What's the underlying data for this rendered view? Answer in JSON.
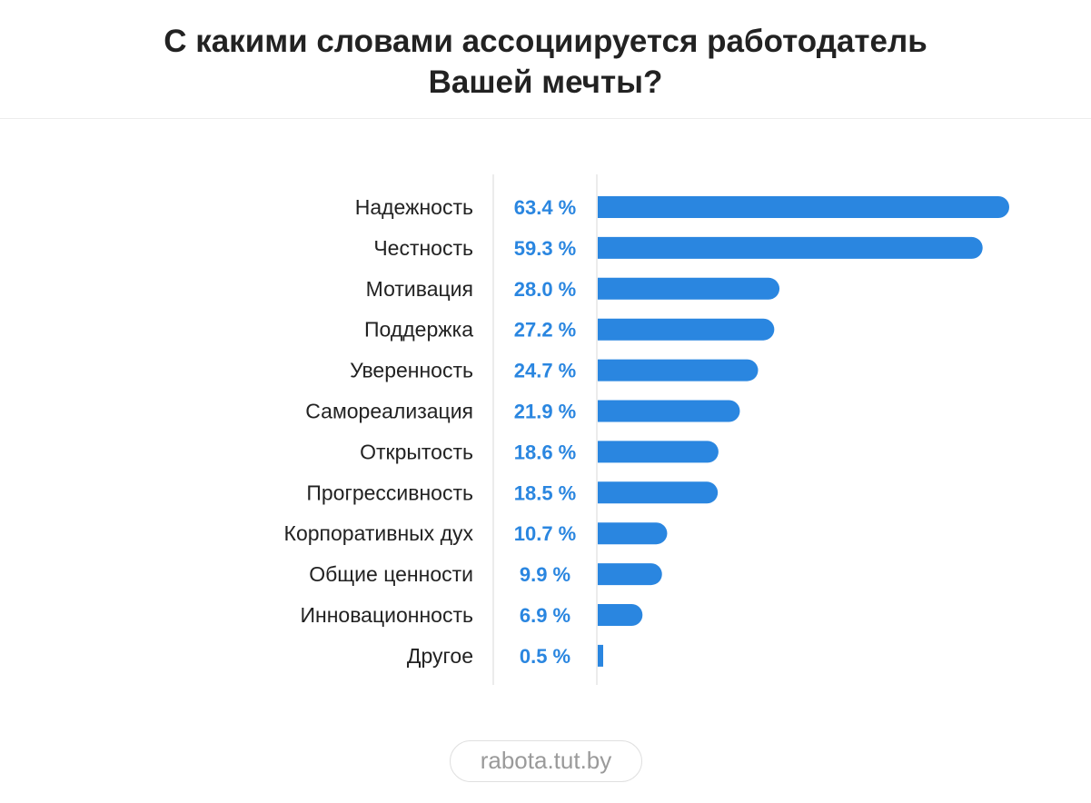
{
  "header": {
    "title_line1": "С какими словами ассоциируется работодатель",
    "title_line2": "Вашей мечты?"
  },
  "source": "rabota.tut.by",
  "colors": {
    "bar": "#2a86e0",
    "value_text": "#2a86e0",
    "divider": "#e6e6e6",
    "text": "#222222"
  },
  "chart_data": {
    "type": "bar",
    "orientation": "horizontal",
    "title": "С какими словами ассоциируется работодатель Вашей мечты?",
    "categories": [
      "Надежность",
      "Честность",
      "Мотивация",
      "Поддержка",
      "Уверенность",
      "Самореализация",
      "Открытость",
      "Прогрессивность",
      "Корпоративных дух",
      "Общие ценности",
      "Инновационность",
      "Другое"
    ],
    "values": [
      63.4,
      59.3,
      28.0,
      27.2,
      24.7,
      21.9,
      18.6,
      18.5,
      10.7,
      9.9,
      6.9,
      0.5
    ],
    "value_labels": [
      "63.4 %",
      "59.3 %",
      "28.0 %",
      "27.2 %",
      "24.7 %",
      "21.9 %",
      "18.6 %",
      "18.5 %",
      "10.7 %",
      "9.9 %",
      "6.9 %",
      "0.5 %"
    ],
    "unit": "%",
    "grid": false,
    "legend": "none"
  }
}
